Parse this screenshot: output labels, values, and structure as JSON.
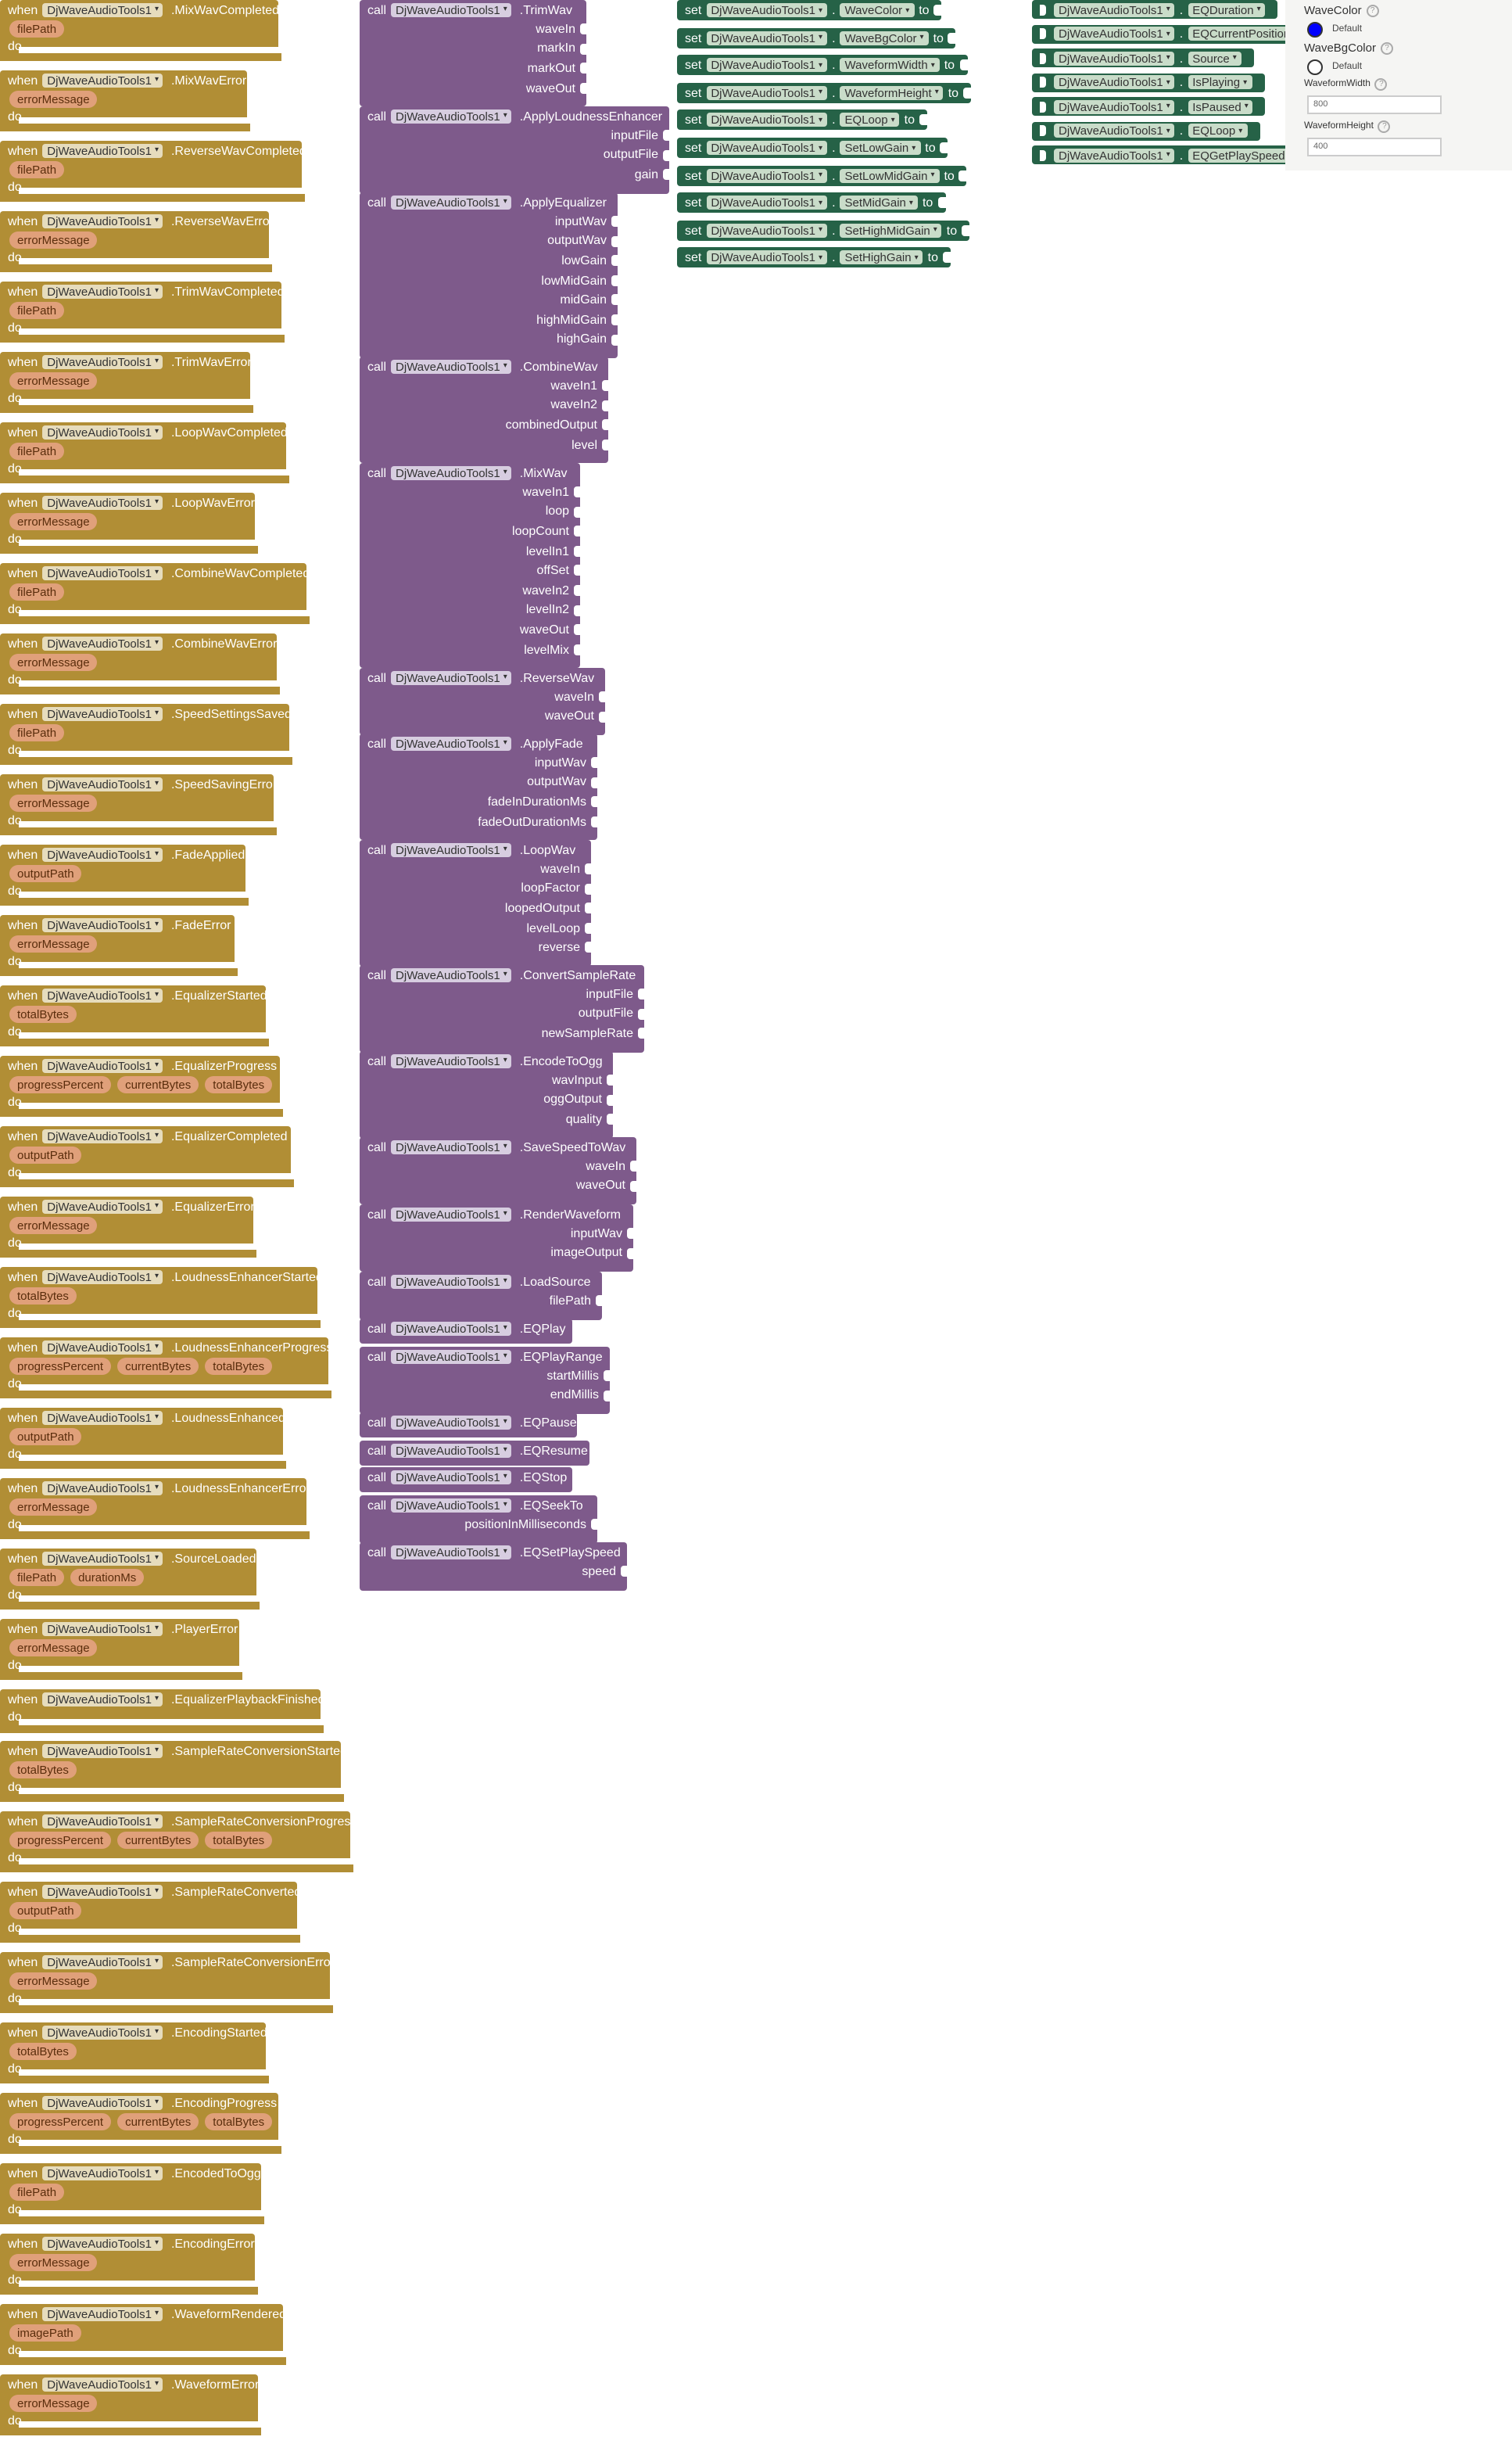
{
  "component": "DjWaveAudioTools1",
  "words": {
    "when": "when",
    "do": "do",
    "call": "call",
    "set": "set",
    "to": "to"
  },
  "events": [
    {
      "name": "MixWavCompleted",
      "params": [
        "filePath"
      ]
    },
    {
      "name": "MixWavError",
      "params": [
        "errorMessage"
      ]
    },
    {
      "name": "ReverseWavCompleted",
      "params": [
        "filePath"
      ]
    },
    {
      "name": "ReverseWavError",
      "params": [
        "errorMessage"
      ]
    },
    {
      "name": "TrimWavCompleted",
      "params": [
        "filePath"
      ]
    },
    {
      "name": "TrimWavError",
      "params": [
        "errorMessage"
      ]
    },
    {
      "name": "LoopWavCompleted",
      "params": [
        "filePath"
      ]
    },
    {
      "name": "LoopWavError",
      "params": [
        "errorMessage"
      ]
    },
    {
      "name": "CombineWavCompleted",
      "params": [
        "filePath"
      ]
    },
    {
      "name": "CombineWavError",
      "params": [
        "errorMessage"
      ]
    },
    {
      "name": "SpeedSettingsSaved",
      "params": [
        "filePath"
      ]
    },
    {
      "name": "SpeedSavingError",
      "params": [
        "errorMessage"
      ]
    },
    {
      "name": "FadeApplied",
      "params": [
        "outputPath"
      ]
    },
    {
      "name": "FadeError",
      "params": [
        "errorMessage"
      ]
    },
    {
      "name": "EqualizerStarted",
      "params": [
        "totalBytes"
      ]
    },
    {
      "name": "EqualizerProgress",
      "params": [
        "progressPercent",
        "currentBytes",
        "totalBytes"
      ]
    },
    {
      "name": "EqualizerCompleted",
      "params": [
        "outputPath"
      ]
    },
    {
      "name": "EqualizerError",
      "params": [
        "errorMessage"
      ]
    },
    {
      "name": "LoudnessEnhancerStarted",
      "params": [
        "totalBytes"
      ]
    },
    {
      "name": "LoudnessEnhancerProgress",
      "params": [
        "progressPercent",
        "currentBytes",
        "totalBytes"
      ]
    },
    {
      "name": "LoudnessEnhanced",
      "params": [
        "outputPath"
      ]
    },
    {
      "name": "LoudnessEnhancerError",
      "params": [
        "errorMessage"
      ]
    },
    {
      "name": "SourceLoaded",
      "params": [
        "filePath",
        "durationMs"
      ]
    },
    {
      "name": "PlayerError",
      "params": [
        "errorMessage"
      ]
    },
    {
      "name": "EqualizerPlaybackFinished",
      "params": []
    },
    {
      "name": "SampleRateConversionStarted",
      "params": [
        "totalBytes"
      ]
    },
    {
      "name": "SampleRateConversionProgress",
      "params": [
        "progressPercent",
        "currentBytes",
        "totalBytes"
      ]
    },
    {
      "name": "SampleRateConverted",
      "params": [
        "outputPath"
      ]
    },
    {
      "name": "SampleRateConversionError",
      "params": [
        "errorMessage"
      ]
    },
    {
      "name": "EncodingStarted",
      "params": [
        "totalBytes"
      ]
    },
    {
      "name": "EncodingProgress",
      "params": [
        "progressPercent",
        "currentBytes",
        "totalBytes"
      ]
    },
    {
      "name": "EncodedToOgg",
      "params": [
        "filePath"
      ]
    },
    {
      "name": "EncodingError",
      "params": [
        "errorMessage"
      ]
    },
    {
      "name": "WaveformRendered",
      "params": [
        "imagePath"
      ]
    },
    {
      "name": "WaveformError",
      "params": [
        "errorMessage"
      ]
    }
  ],
  "methods": [
    {
      "name": "TrimWav",
      "args": [
        "waveIn",
        "markIn",
        "markOut",
        "waveOut"
      ]
    },
    {
      "name": "ApplyLoudnessEnhancer",
      "args": [
        "inputFile",
        "outputFile",
        "gain"
      ]
    },
    {
      "name": "ApplyEqualizer",
      "args": [
        "inputWav",
        "outputWav",
        "lowGain",
        "lowMidGain",
        "midGain",
        "highMidGain",
        "highGain"
      ]
    },
    {
      "name": "CombineWav",
      "args": [
        "waveIn1",
        "waveIn2",
        "combinedOutput",
        "level"
      ]
    },
    {
      "name": "MixWav",
      "args": [
        "waveIn1",
        "loop",
        "loopCount",
        "levelIn1",
        "offSet",
        "waveIn2",
        "levelIn2",
        "waveOut",
        "levelMix"
      ]
    },
    {
      "name": "ReverseWav",
      "args": [
        "waveIn",
        "waveOut"
      ]
    },
    {
      "name": "ApplyFade",
      "args": [
        "inputWav",
        "outputWav",
        "fadeInDurationMs",
        "fadeOutDurationMs"
      ]
    },
    {
      "name": "LoopWav",
      "args": [
        "waveIn",
        "loopFactor",
        "loopedOutput",
        "levelLoop",
        "reverse"
      ]
    },
    {
      "name": "ConvertSampleRate",
      "args": [
        "inputFile",
        "outputFile",
        "newSampleRate"
      ]
    },
    {
      "name": "EncodeToOgg",
      "args": [
        "wavInput",
        "oggOutput",
        "quality"
      ]
    },
    {
      "name": "SaveSpeedToWav",
      "args": [
        "waveIn",
        "waveOut"
      ]
    },
    {
      "name": "RenderWaveform",
      "args": [
        "inputWav",
        "imageOutput"
      ]
    },
    {
      "name": "LoadSource",
      "args": [
        "filePath"
      ]
    },
    {
      "name": "EQPlay",
      "args": []
    },
    {
      "name": "EQPlayRange",
      "args": [
        "startMillis",
        "endMillis"
      ]
    },
    {
      "name": "EQPause",
      "args": []
    },
    {
      "name": "EQResume",
      "args": []
    },
    {
      "name": "EQStop",
      "args": []
    },
    {
      "name": "EQSeekTo",
      "args": [
        "positionInMilliseconds"
      ]
    },
    {
      "name": "EQSetPlaySpeed",
      "args": [
        "speed"
      ]
    }
  ],
  "setters": [
    "WaveColor",
    "WaveBgColor",
    "WaveformWidth",
    "WaveformHeight",
    "EQLoop",
    "SetLowGain",
    "SetLowMidGain",
    "SetMidGain",
    "SetHighMidGain",
    "SetHighGain"
  ],
  "getters": [
    "EQDuration",
    "EQCurrentPosition",
    "Source",
    "IsPlaying",
    "IsPaused",
    "EQLoop",
    "EQGetPlaySpeed"
  ],
  "properties": {
    "wave_color_label": "WaveColor",
    "wave_color_value": "Default",
    "wave_color_hex": "#0000ff",
    "wave_bg_color_label": "WaveBgColor",
    "wave_bg_color_value": "Default",
    "wave_bg_color_hex": "#ffffff",
    "waveform_width_label": "WaveformWidth",
    "waveform_width_value": "800",
    "waveform_height_label": "WaveformHeight",
    "waveform_height_value": "400",
    "help_glyph": "?"
  },
  "colors": {
    "event": "#b18e35",
    "method": "#7e5a8b",
    "property": "#266247"
  }
}
